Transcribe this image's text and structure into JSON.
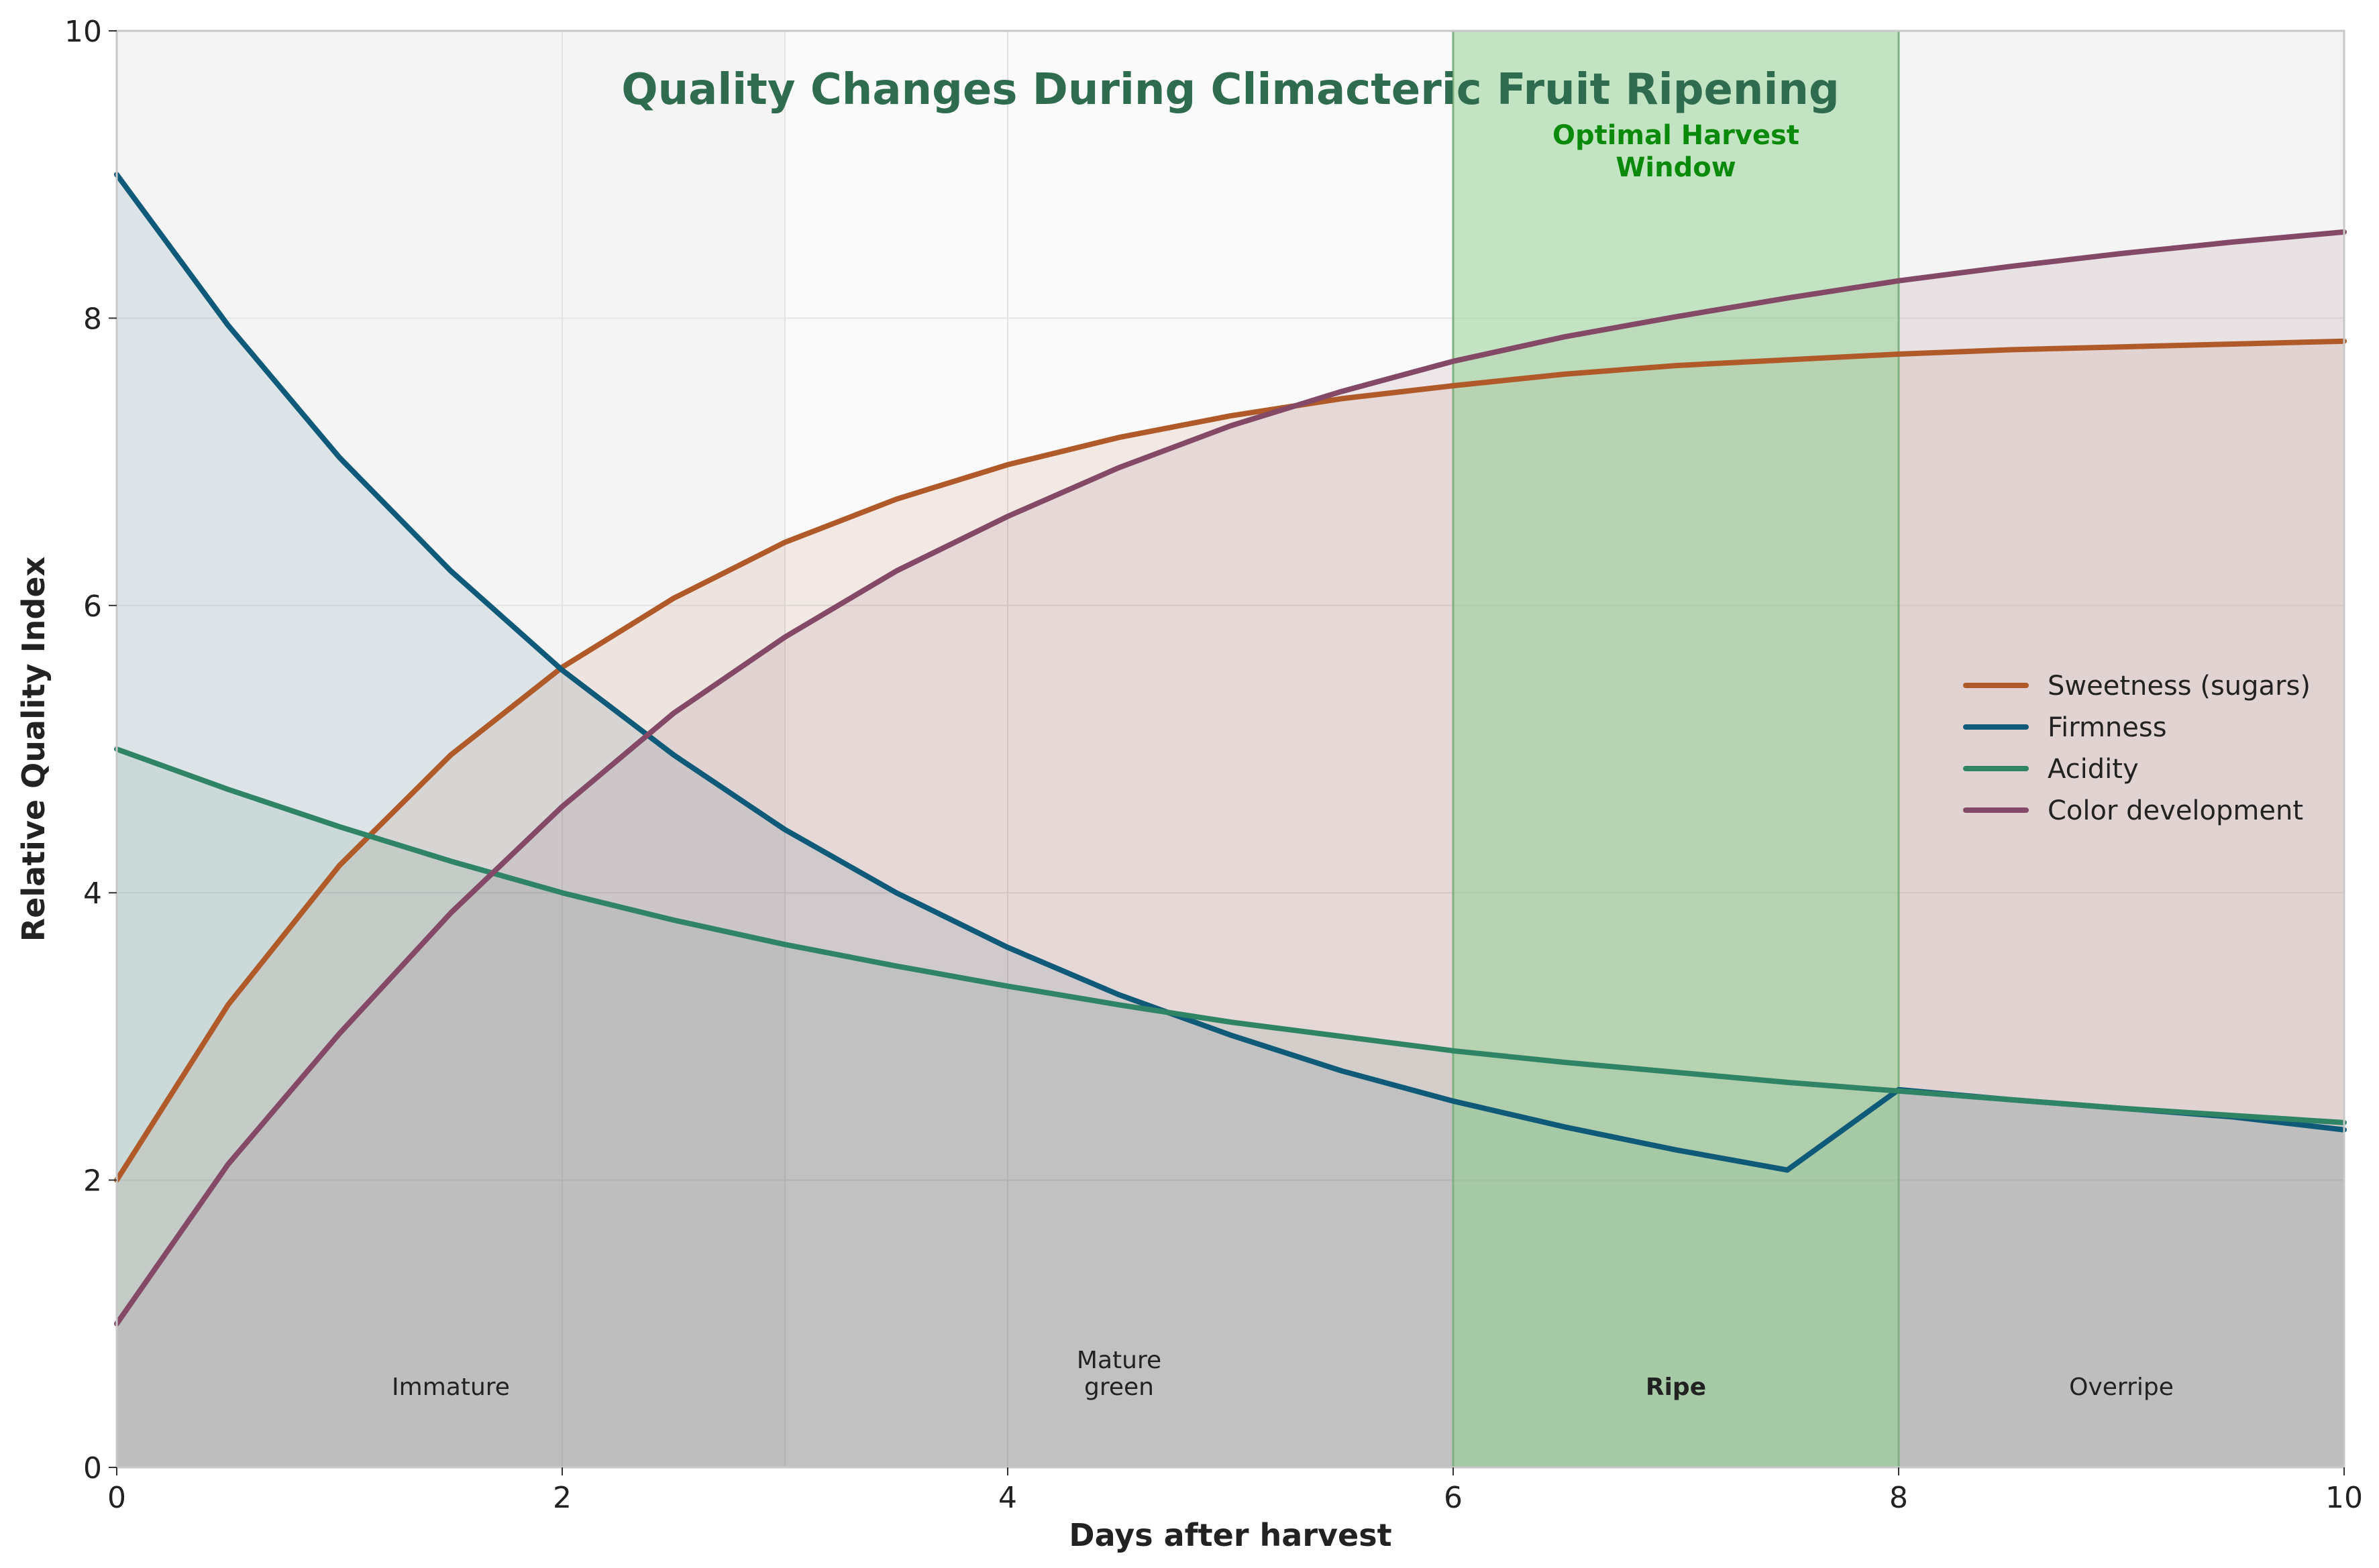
{
  "colors": {
    "sweetness": "#b05a2a",
    "firmness": "#0f5a79",
    "acidity": "#2f8466",
    "color_dev": "#844966",
    "title": "#2e6b4f",
    "window_label": "#0a8a0a",
    "window_fill": "#8ed18e"
  },
  "chart_data": {
    "type": "line",
    "title": "Quality Changes During Climacteric Fruit Ripening",
    "xlabel": "Days after harvest",
    "ylabel": "Relative Quality Index",
    "xlim": [
      0,
      10
    ],
    "ylim": [
      0,
      10
    ],
    "xticks": [
      "0",
      "2",
      "4",
      "6",
      "8",
      "10"
    ],
    "yticks": [
      "0",
      "2",
      "4",
      "6",
      "8",
      "10"
    ],
    "grid": true,
    "legend_position": "center-right",
    "x": [
      0,
      0.5,
      1,
      1.5,
      2,
      2.5,
      3,
      3.5,
      4,
      4.5,
      5,
      5.5,
      6,
      6.5,
      7,
      7.5,
      8,
      8.5,
      9,
      9.5,
      10
    ],
    "series": [
      {
        "name": "Sweetness (sugars)",
        "color_key": "sweetness",
        "values": [
          2.0,
          3.22,
          4.19,
          4.96,
          5.57,
          6.05,
          6.44,
          6.74,
          6.98,
          7.17,
          7.32,
          7.44,
          7.53,
          7.61,
          7.67,
          7.71,
          7.75,
          7.78,
          7.8,
          7.82,
          7.84
        ]
      },
      {
        "name": "Firmness",
        "color_key": "firmness",
        "values": [
          9.0,
          7.95,
          7.03,
          6.24,
          5.55,
          4.96,
          4.44,
          4.0,
          3.62,
          3.29,
          3.01,
          2.76,
          2.55,
          2.37,
          2.21,
          2.07,
          2.63,
          2.56,
          2.5,
          2.44,
          2.35
        ]
      },
      {
        "name": "Acidity",
        "color_key": "acidity",
        "values": [
          5.0,
          4.72,
          4.46,
          4.22,
          4.0,
          3.81,
          3.64,
          3.49,
          3.35,
          3.22,
          3.1,
          3.0,
          2.9,
          2.82,
          2.75,
          2.68,
          2.62,
          2.56,
          2.5,
          2.45,
          2.4
        ]
      },
      {
        "name": "Color development",
        "color_key": "color_dev",
        "values": [
          1.0,
          2.11,
          3.02,
          3.86,
          4.6,
          5.25,
          5.78,
          6.24,
          6.62,
          6.96,
          7.25,
          7.49,
          7.7,
          7.87,
          8.01,
          8.14,
          8.26,
          8.36,
          8.45,
          8.53,
          8.6
        ]
      }
    ],
    "shaded_region": {
      "x_start": 6,
      "x_end": 8,
      "label": "Optimal Harvest\nWindow"
    },
    "stages": [
      {
        "label": "Immature",
        "x": 1.5,
        "bold": false
      },
      {
        "label": "Mature\ngreen",
        "x": 4.5,
        "bold": false
      },
      {
        "label": "Ripe",
        "x": 7,
        "bold": true
      },
      {
        "label": "Overripe",
        "x": 9,
        "bold": false
      }
    ]
  }
}
